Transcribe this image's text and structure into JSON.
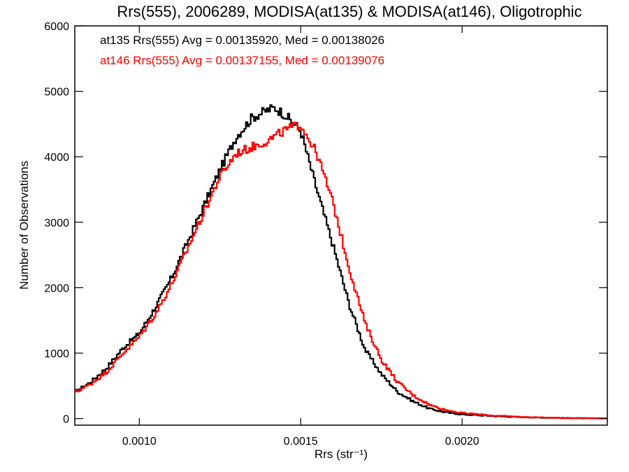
{
  "chart_data": {
    "type": "line",
    "step": true,
    "title": "Rrs(555), 2006289, MODISA(at135) & MODISA(at146), Oligotrophic",
    "xlabel": "Rrs (str⁻¹)",
    "ylabel": "Number of Observations",
    "xlim": [
      0.0008,
      0.00245
    ],
    "ylim": [
      -100,
      6000
    ],
    "xticks": [
      0.001,
      0.0015,
      0.002
    ],
    "xtick_labels": [
      "0.0010",
      "0.0015",
      "0.0020"
    ],
    "yticks": [
      0,
      1000,
      2000,
      3000,
      4000,
      5000,
      6000
    ],
    "ytick_labels": [
      "0",
      "1000",
      "2000",
      "3000",
      "4000",
      "5000",
      "6000"
    ],
    "grid": false,
    "annotations": [
      {
        "text": "at135 Rrs(555) Avg = 0.00135920, Med = 0.00138026",
        "color": "#000000"
      },
      {
        "text": "at146 Rrs(555) Avg = 0.00137155, Med = 0.00139076",
        "color": "#ff0000"
      }
    ],
    "series": [
      {
        "color": "#000000",
        "x": [
          0.0008,
          0.00085,
          0.0009,
          0.00095,
          0.001,
          0.00105,
          0.0011,
          0.00115,
          0.0012,
          0.00125,
          0.0013,
          0.00135,
          0.0014,
          0.00142,
          0.00145,
          0.0015,
          0.00155,
          0.0016,
          0.00165,
          0.0017,
          0.00175,
          0.0018,
          0.00185,
          0.0019,
          0.00195,
          0.002,
          0.0021,
          0.0022,
          0.0023,
          0.00245
        ],
        "y": [
          400,
          560,
          780,
          1080,
          1300,
          1700,
          2150,
          2700,
          3250,
          3800,
          4300,
          4600,
          4720,
          4750,
          4650,
          4400,
          3500,
          2650,
          1750,
          1050,
          680,
          410,
          260,
          150,
          95,
          65,
          38,
          20,
          10,
          3
        ]
      },
      {
        "color": "#ff0000",
        "x": [
          0.0008,
          0.00085,
          0.0009,
          0.00095,
          0.001,
          0.00105,
          0.0011,
          0.00115,
          0.0012,
          0.00125,
          0.0013,
          0.00135,
          0.0014,
          0.00145,
          0.0015,
          0.00155,
          0.0016,
          0.00165,
          0.0017,
          0.00175,
          0.0018,
          0.00185,
          0.0019,
          0.00195,
          0.002,
          0.0021,
          0.0022,
          0.0023,
          0.00245
        ],
        "y": [
          400,
          530,
          720,
          1000,
          1250,
          1600,
          2050,
          2600,
          3150,
          3700,
          4050,
          4150,
          4250,
          4400,
          4500,
          4050,
          3300,
          2300,
          1450,
          900,
          560,
          350,
          210,
          130,
          85,
          45,
          22,
          10,
          3
        ]
      }
    ]
  }
}
